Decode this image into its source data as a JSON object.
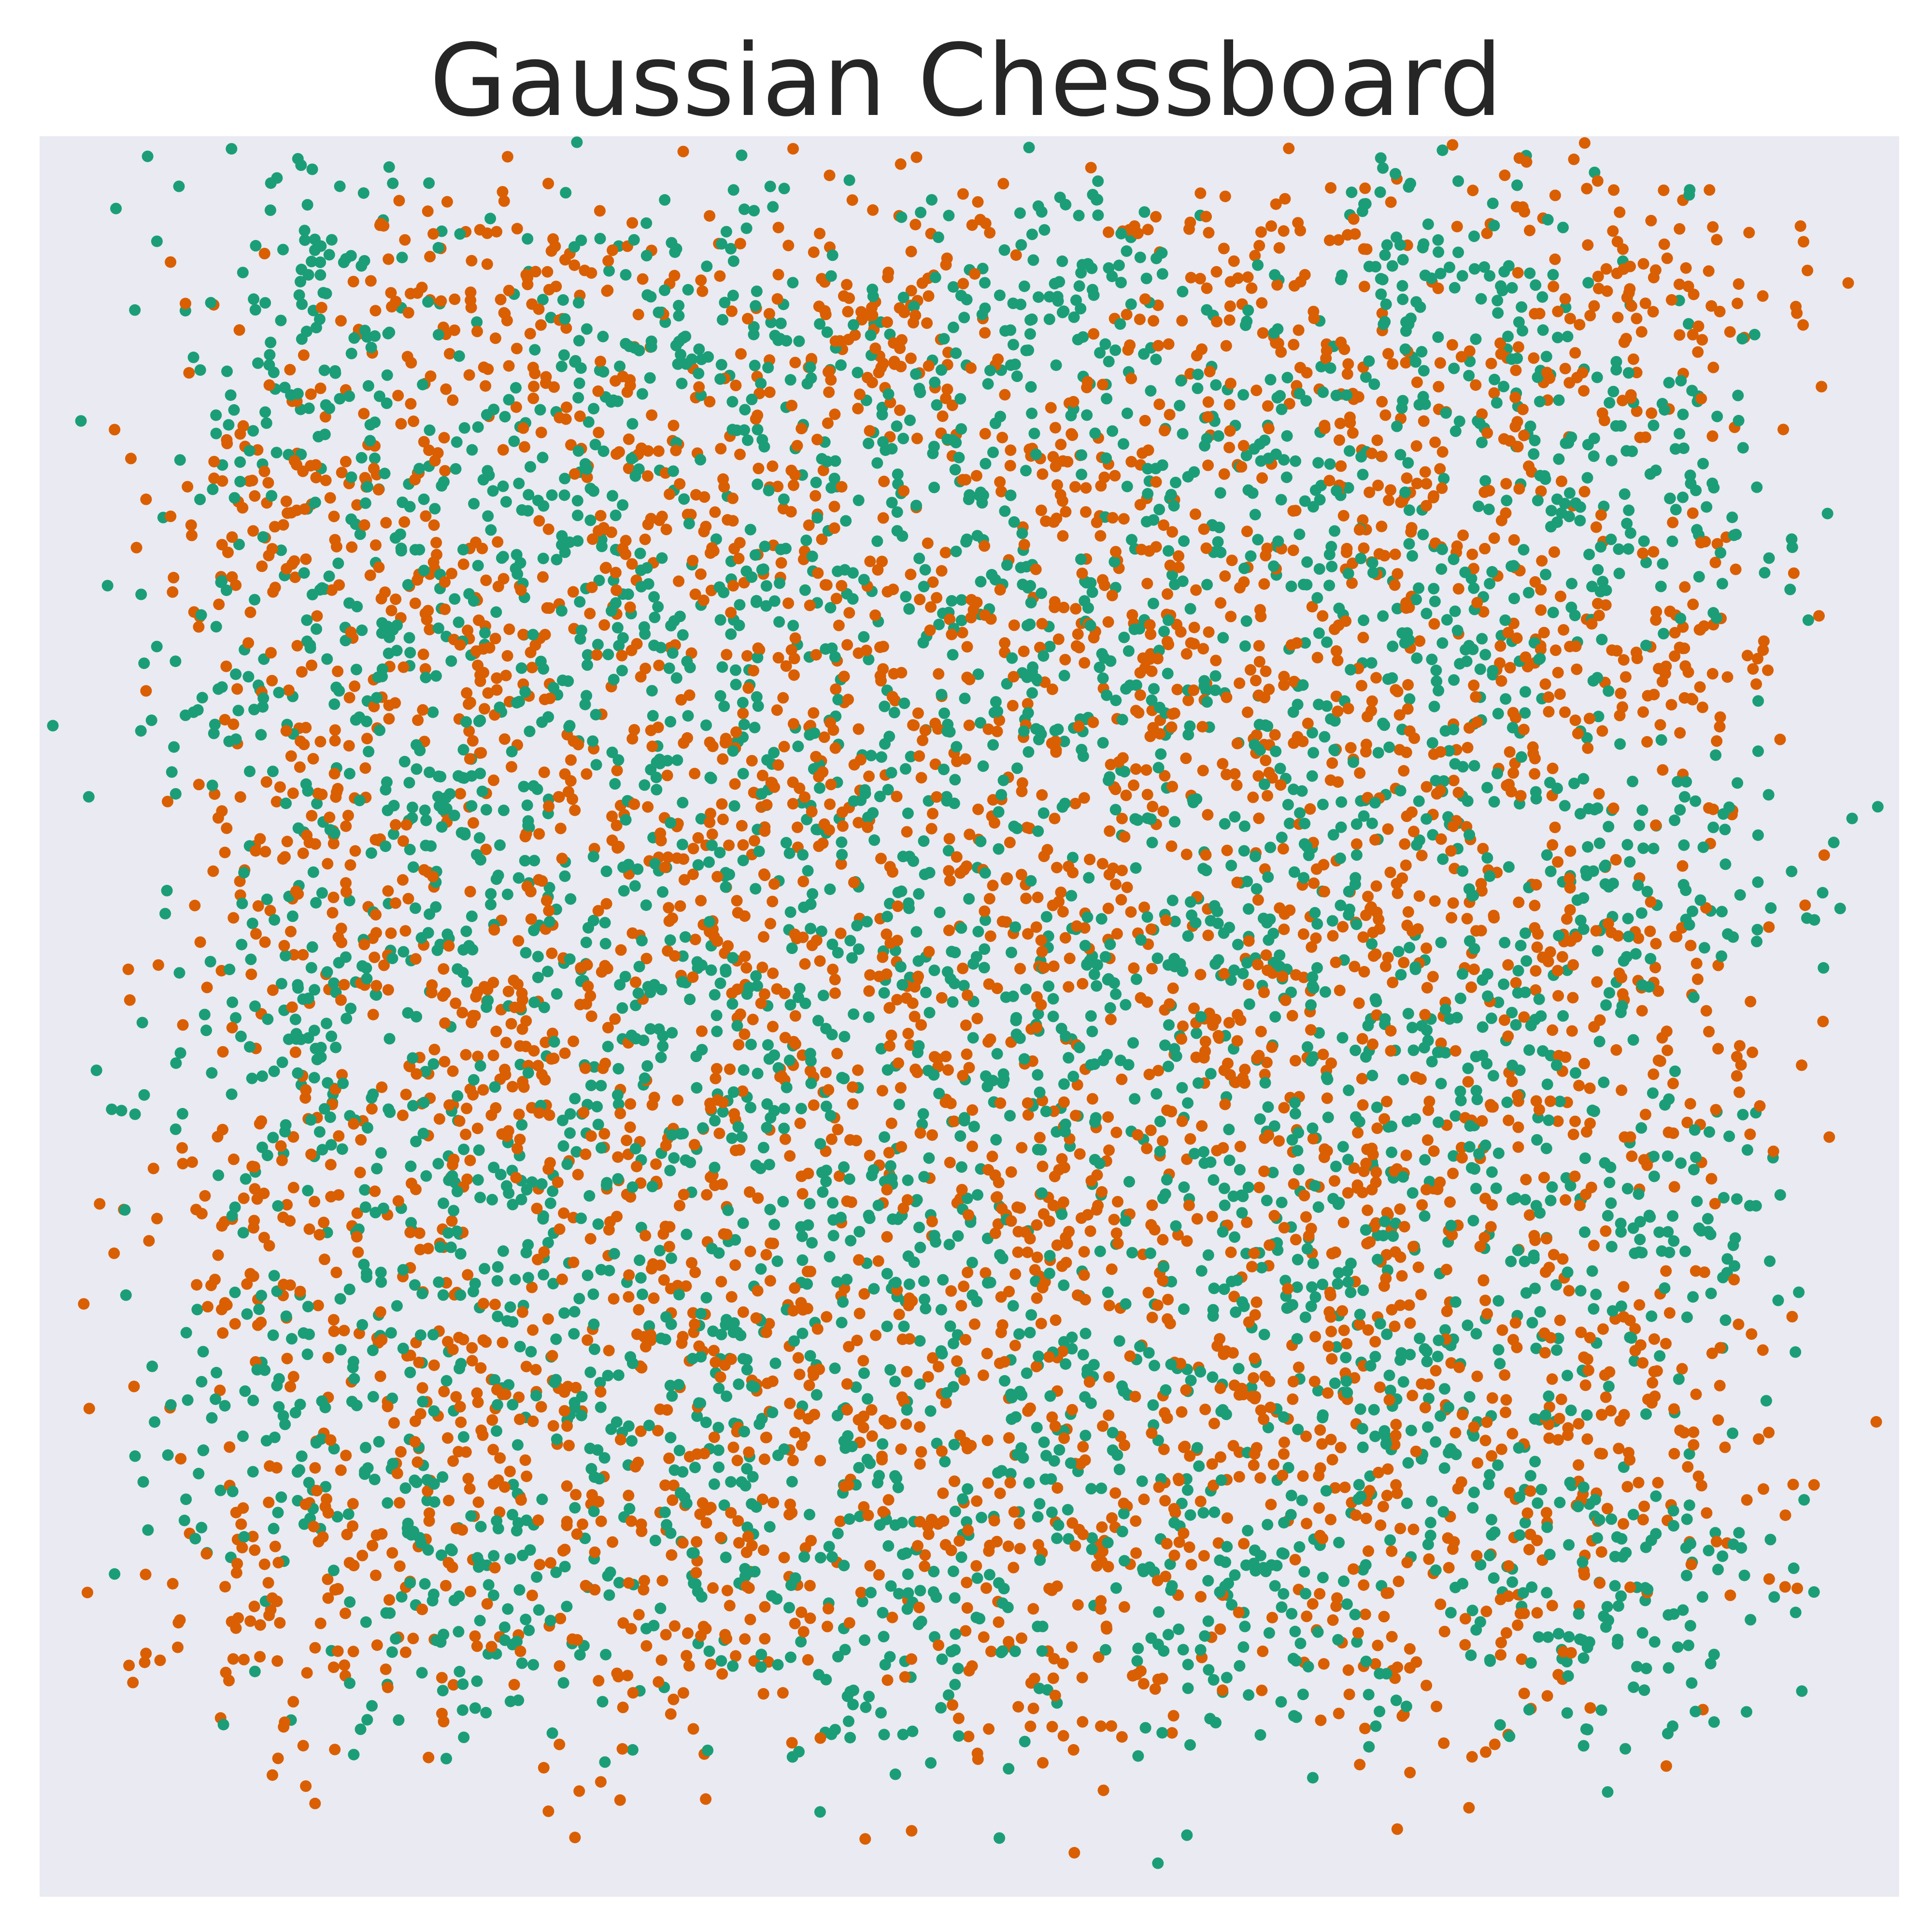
{
  "chart_data": {
    "type": "scatter",
    "title": "Gaussian Chessboard",
    "xlabel": "",
    "ylabel": "",
    "xlim": [
      -0.12,
      1.12
    ],
    "ylim": [
      -0.14,
      1.06
    ],
    "grid": false,
    "axes_visible": false,
    "background": "#eaeaf2",
    "board": {
      "rows": 8,
      "cols": 8,
      "sigma": 0.045,
      "points_per_cell": 130
    },
    "series": [
      {
        "class": 0,
        "color": "#d95f02",
        "cells": "(row + col) even"
      },
      {
        "class": 1,
        "color": "#1b9e77",
        "cells": "(row + col) odd"
      }
    ],
    "highlighted_points": [
      {
        "x": 0.03,
        "y": 0.98,
        "class": 0
      },
      {
        "x": 0.42,
        "y": 1.03,
        "class": 1
      },
      {
        "x": 0.98,
        "y": 1.02,
        "class": 1
      },
      {
        "x": -0.07,
        "y": 0.86,
        "class": 0
      },
      {
        "x": 1.07,
        "y": 0.57,
        "class": 0
      },
      {
        "x": 0.52,
        "y": -0.1,
        "class": 1
      },
      {
        "x": 0.57,
        "y": -0.11,
        "class": 0
      },
      {
        "x": -0.07,
        "y": 0.08,
        "class": 1
      }
    ]
  }
}
